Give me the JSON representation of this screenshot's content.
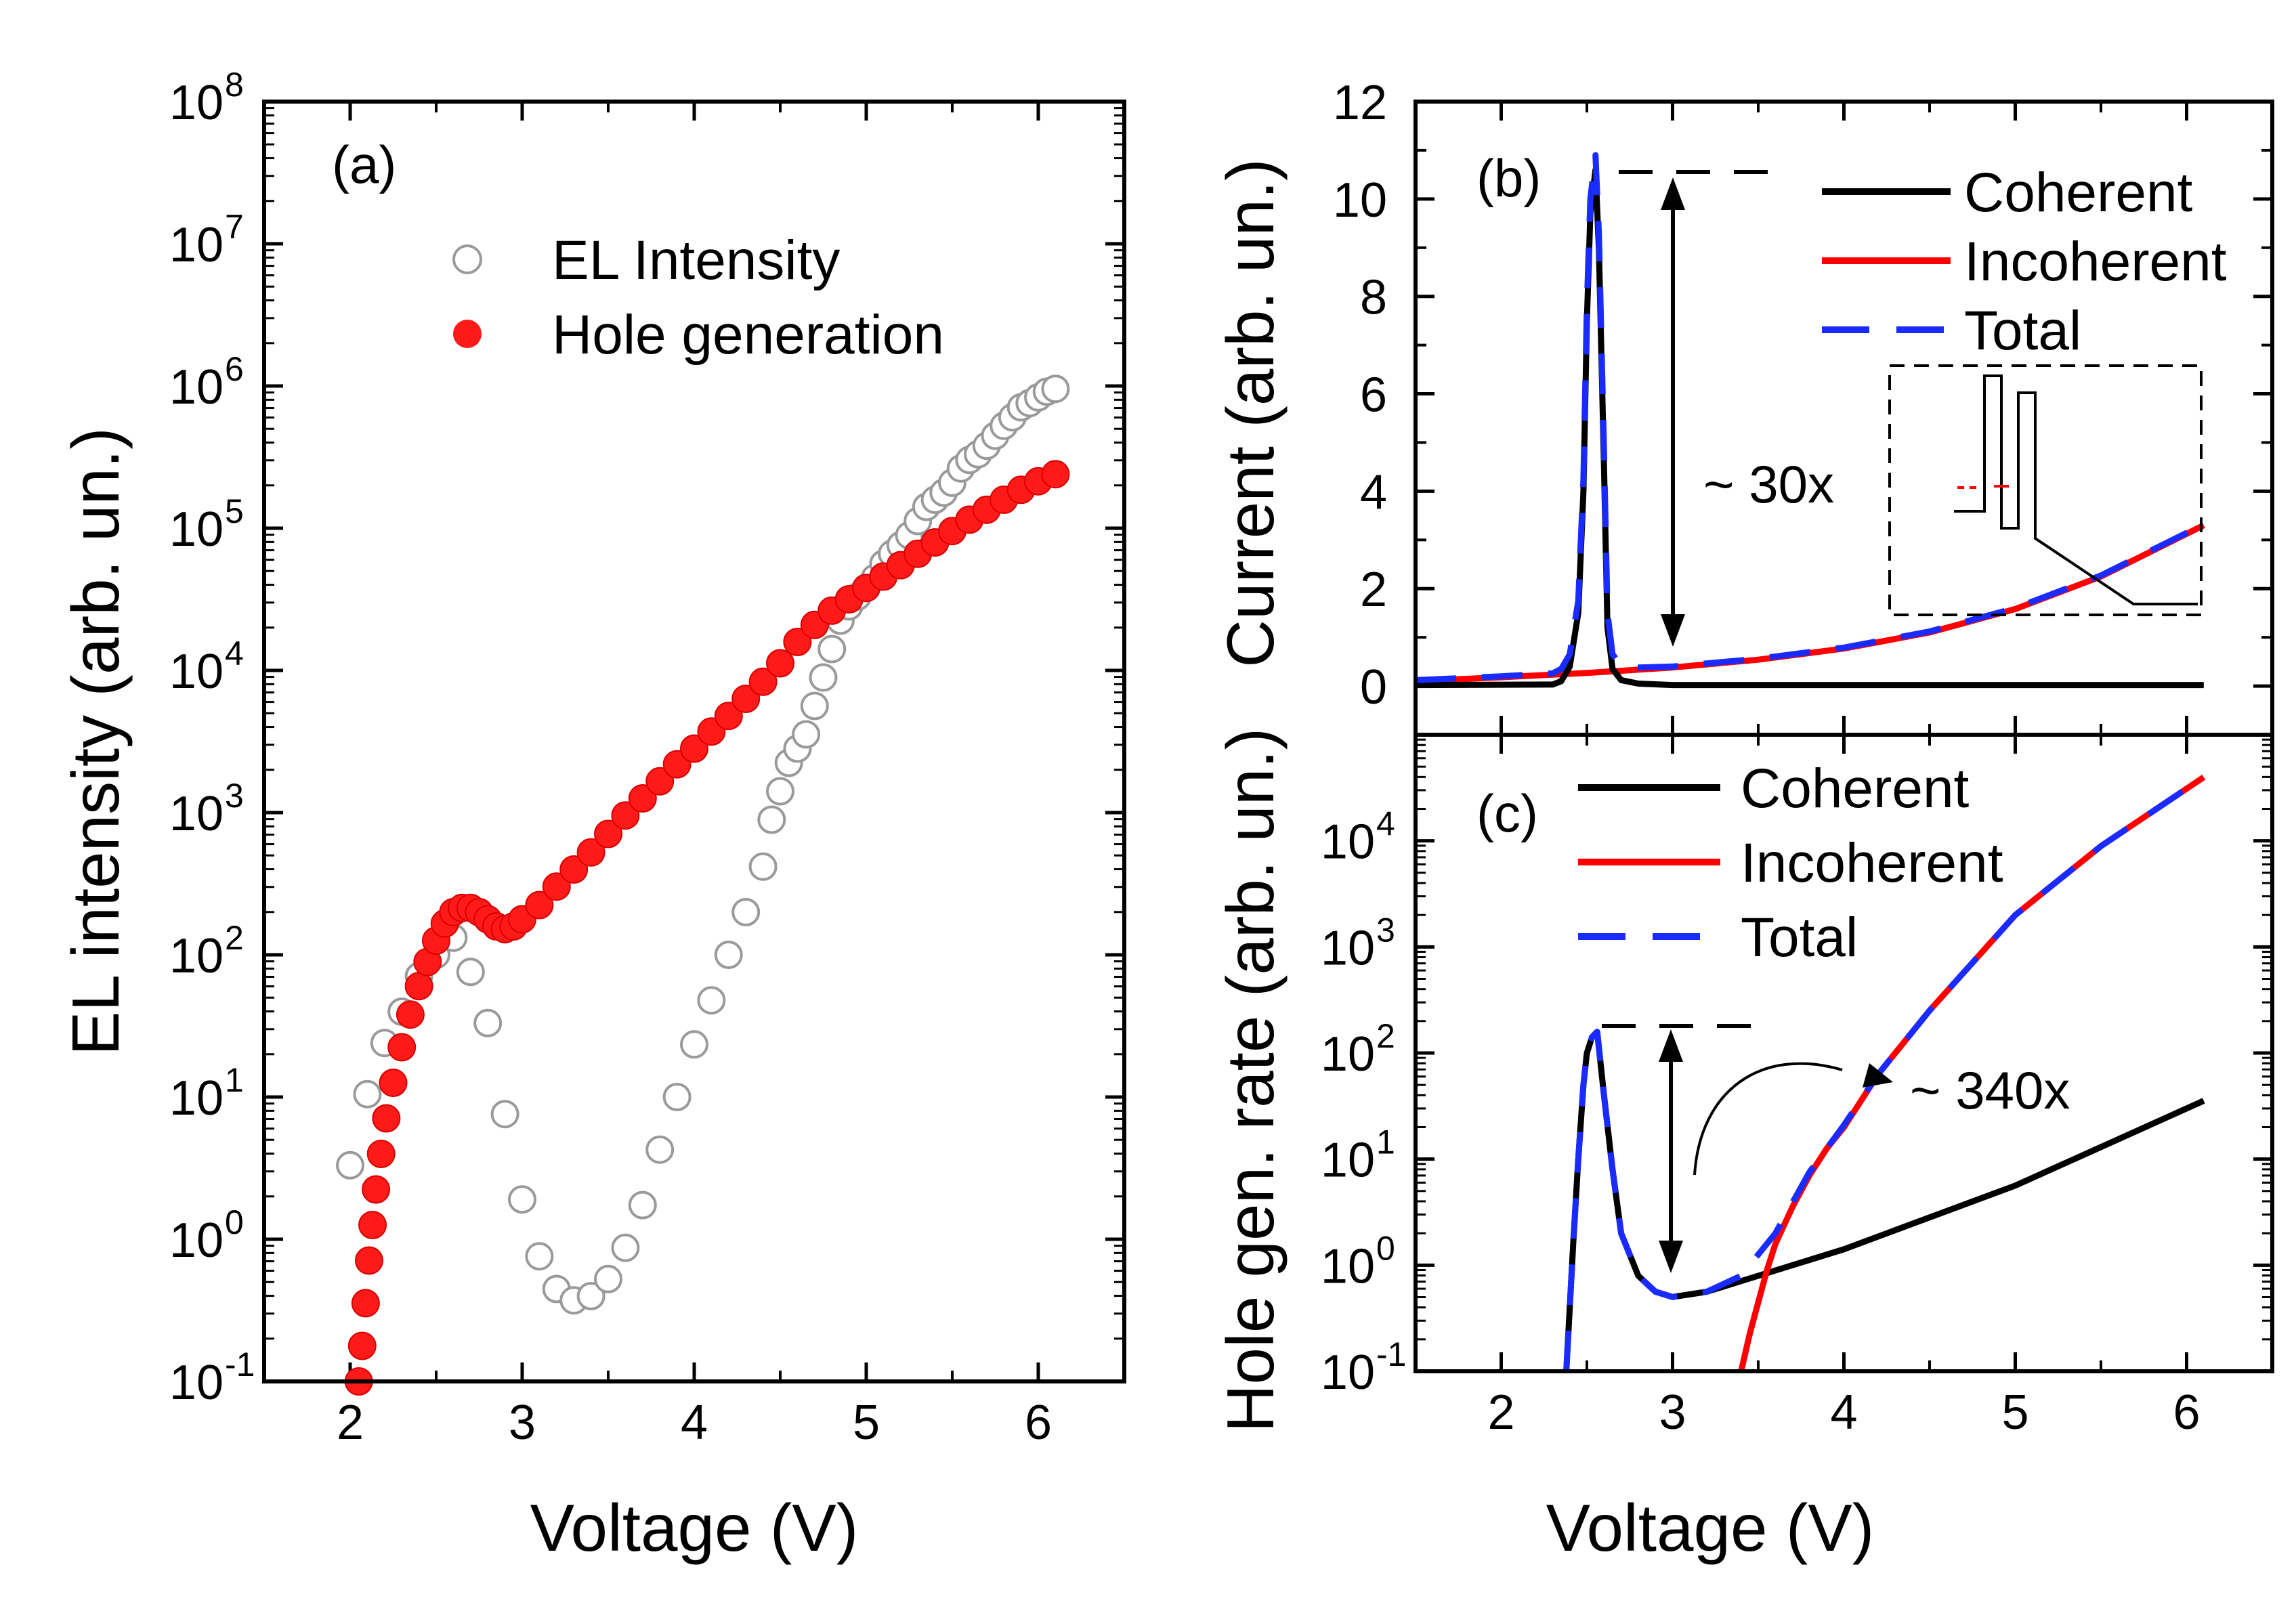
{
  "chart_data": [
    {
      "id": "a",
      "type": "scatter",
      "panel_label": "(a)",
      "xlabel": "Voltage (V)",
      "ylabel": "EL intensity (arb. un.)",
      "xlim": [
        1.5,
        6.5
      ],
      "ylim_exp": [
        -1,
        8
      ],
      "yscale": "log",
      "xticks": [
        "2",
        "3",
        "4",
        "5",
        "6"
      ],
      "yticks": [
        {
          "base": "10",
          "exp": "-1"
        },
        {
          "base": "10",
          "exp": "0"
        },
        {
          "base": "10",
          "exp": "1"
        },
        {
          "base": "10",
          "exp": "2"
        },
        {
          "base": "10",
          "exp": "3"
        },
        {
          "base": "10",
          "exp": "4"
        },
        {
          "base": "10",
          "exp": "5"
        },
        {
          "base": "10",
          "exp": "6"
        },
        {
          "base": "10",
          "exp": "7"
        },
        {
          "base": "10",
          "exp": "8"
        }
      ],
      "series": [
        {
          "name": "EL Intensity",
          "marker": "open-circle",
          "color": "#9a9a9a",
          "x": [
            2.0,
            2.1,
            2.2,
            2.3,
            2.4,
            2.5,
            2.6,
            2.7,
            2.8,
            2.9,
            3.0,
            3.1,
            3.2,
            3.3,
            3.4,
            3.5,
            3.6,
            3.7,
            3.8,
            3.9,
            4.0,
            4.1,
            4.2,
            4.3,
            4.4,
            4.45,
            4.5,
            4.55,
            4.6,
            4.65,
            4.7,
            4.75,
            4.8,
            4.85,
            4.9,
            4.95,
            5.0,
            5.05,
            5.1,
            5.15,
            5.2,
            5.25,
            5.3,
            5.35,
            5.4,
            5.45,
            5.5,
            5.55,
            5.6,
            5.65,
            5.7,
            5.75,
            5.8,
            5.85,
            5.9,
            5.95,
            6.0,
            6.05,
            6.1
          ],
          "y_log10": [
            0.52,
            1.02,
            1.38,
            1.6,
            1.85,
            2.0,
            2.12,
            1.88,
            1.52,
            0.88,
            0.28,
            -0.12,
            -0.35,
            -0.43,
            -0.4,
            -0.28,
            -0.06,
            0.24,
            0.63,
            1.0,
            1.37,
            1.68,
            2.0,
            2.3,
            2.62,
            2.95,
            3.15,
            3.35,
            3.45,
            3.55,
            3.75,
            3.95,
            4.15,
            4.35,
            4.45,
            4.52,
            4.58,
            4.65,
            4.75,
            4.82,
            4.88,
            4.95,
            5.05,
            5.15,
            5.2,
            5.25,
            5.32,
            5.42,
            5.48,
            5.52,
            5.58,
            5.65,
            5.72,
            5.78,
            5.85,
            5.88,
            5.92,
            5.96,
            5.98
          ]
        },
        {
          "name": "Hole generation",
          "marker": "filled-circle",
          "color": "#ff1a1a",
          "x": [
            2.05,
            2.07,
            2.09,
            2.11,
            2.13,
            2.15,
            2.18,
            2.21,
            2.25,
            2.3,
            2.35,
            2.4,
            2.45,
            2.5,
            2.55,
            2.6,
            2.65,
            2.7,
            2.75,
            2.8,
            2.85,
            2.9,
            2.95,
            3.0,
            3.1,
            3.2,
            3.3,
            3.4,
            3.5,
            3.6,
            3.7,
            3.8,
            3.9,
            4.0,
            4.1,
            4.2,
            4.3,
            4.4,
            4.5,
            4.6,
            4.7,
            4.8,
            4.9,
            5.0,
            5.1,
            5.2,
            5.3,
            5.4,
            5.5,
            5.6,
            5.7,
            5.8,
            5.9,
            6.0,
            6.1
          ],
          "y_log10": [
            -1.0,
            -0.75,
            -0.45,
            -0.15,
            0.1,
            0.35,
            0.6,
            0.85,
            1.1,
            1.35,
            1.58,
            1.78,
            1.95,
            2.1,
            2.22,
            2.3,
            2.33,
            2.33,
            2.3,
            2.25,
            2.2,
            2.18,
            2.2,
            2.25,
            2.35,
            2.48,
            2.6,
            2.72,
            2.85,
            2.98,
            3.1,
            3.22,
            3.34,
            3.45,
            3.57,
            3.68,
            3.8,
            3.92,
            4.05,
            4.2,
            4.32,
            4.42,
            4.5,
            4.58,
            4.66,
            4.74,
            4.82,
            4.9,
            4.98,
            5.06,
            5.13,
            5.2,
            5.27,
            5.33,
            5.38
          ]
        }
      ]
    },
    {
      "id": "b",
      "type": "line",
      "panel_label": "(b)",
      "xlabel": "",
      "ylabel": "Current (arb. un.)",
      "xlim": [
        1.5,
        6.5
      ],
      "ylim": [
        -1,
        12
      ],
      "xticks": [
        "2",
        "3",
        "4",
        "5",
        "6"
      ],
      "yticks": [
        "0",
        "2",
        "4",
        "6",
        "8",
        "10",
        "12"
      ],
      "series": [
        {
          "name": "Coherent",
          "color": "#000000",
          "x": [
            1.5,
            2.3,
            2.35,
            2.4,
            2.45,
            2.48,
            2.5,
            2.52,
            2.55,
            2.57,
            2.6,
            2.62,
            2.65,
            2.7,
            2.8,
            3.0,
            6.1
          ],
          "y": [
            0.02,
            0.03,
            0.1,
            0.4,
            1.5,
            4.0,
            7.5,
            9.7,
            10.6,
            9.0,
            4.5,
            1.2,
            0.35,
            0.12,
            0.05,
            0.02,
            0.02
          ]
        },
        {
          "name": "Incoherent",
          "color": "#ff0000",
          "x": [
            1.5,
            2.0,
            2.5,
            3.0,
            3.5,
            4.0,
            4.5,
            5.0,
            5.5,
            6.1
          ],
          "y": [
            0.1,
            0.18,
            0.27,
            0.38,
            0.54,
            0.77,
            1.1,
            1.58,
            2.25,
            3.3
          ]
        },
        {
          "name": "Total",
          "color": "#1a2bff",
          "dashed": true,
          "x": [
            1.5,
            2.0,
            2.3,
            2.35,
            2.4,
            2.45,
            2.48,
            2.5,
            2.52,
            2.55,
            2.57,
            2.6,
            2.62,
            2.65,
            2.7,
            2.8,
            3.0,
            3.5,
            4.0,
            4.5,
            5.0,
            5.5,
            6.1
          ],
          "y": [
            0.12,
            0.2,
            0.26,
            0.35,
            0.65,
            1.75,
            4.25,
            7.8,
            10.0,
            10.9,
            9.3,
            4.8,
            1.5,
            0.65,
            0.42,
            0.38,
            0.4,
            0.56,
            0.79,
            1.12,
            1.6,
            2.27,
            3.32
          ]
        }
      ],
      "annotations": [
        {
          "text": "~ 30x"
        }
      ]
    },
    {
      "id": "c",
      "type": "line",
      "panel_label": "(c)",
      "xlabel": "Voltage (V)",
      "ylabel": "Hole gen. rate (arb. un.)",
      "xlim": [
        1.5,
        6.5
      ],
      "ylim_exp": [
        -1,
        5
      ],
      "yscale": "log",
      "xticks": [
        "2",
        "3",
        "4",
        "5",
        "6"
      ],
      "yticks": [
        {
          "base": "10",
          "exp": "-1"
        },
        {
          "base": "10",
          "exp": "0"
        },
        {
          "base": "10",
          "exp": "1"
        },
        {
          "base": "10",
          "exp": "2"
        },
        {
          "base": "10",
          "exp": "3"
        },
        {
          "base": "10",
          "exp": "4"
        }
      ],
      "series": [
        {
          "name": "Coherent",
          "color": "#000000",
          "x": [
            2.38,
            2.42,
            2.45,
            2.48,
            2.5,
            2.53,
            2.56,
            2.6,
            2.65,
            2.7,
            2.8,
            2.9,
            3.0,
            3.2,
            3.5,
            4.0,
            5.0,
            6.1
          ],
          "y_log10": [
            -1.0,
            0.2,
            1.0,
            1.7,
            2.0,
            2.15,
            2.2,
            1.6,
            0.9,
            0.3,
            -0.1,
            -0.25,
            -0.3,
            -0.25,
            -0.1,
            0.15,
            0.75,
            1.55
          ]
        },
        {
          "name": "Incoherent",
          "color": "#ff0000",
          "x": [
            3.4,
            3.45,
            3.5,
            3.55,
            3.6,
            3.7,
            3.8,
            3.9,
            4.0,
            4.2,
            4.5,
            5.0,
            5.5,
            6.1
          ],
          "y_log10": [
            -1.0,
            -0.65,
            -0.35,
            -0.05,
            0.2,
            0.55,
            0.85,
            1.1,
            1.3,
            1.8,
            2.4,
            3.3,
            3.95,
            4.6
          ]
        },
        {
          "name": "Total",
          "color": "#1a2bff",
          "dashed": true,
          "x": [
            2.38,
            2.42,
            2.45,
            2.48,
            2.5,
            2.53,
            2.56,
            2.6,
            2.65,
            2.7,
            2.8,
            2.9,
            3.0,
            3.2,
            3.4,
            3.6,
            3.8,
            4.0,
            4.2,
            4.5,
            5.0,
            5.5,
            6.1
          ],
          "y_log10": [
            -1.0,
            0.2,
            1.0,
            1.7,
            2.0,
            2.15,
            2.2,
            1.6,
            0.9,
            0.3,
            -0.1,
            -0.25,
            -0.3,
            -0.25,
            -0.1,
            0.3,
            0.88,
            1.32,
            1.8,
            2.4,
            3.3,
            3.95,
            4.6
          ]
        }
      ],
      "annotations": [
        {
          "text": "~ 340x"
        }
      ]
    }
  ]
}
